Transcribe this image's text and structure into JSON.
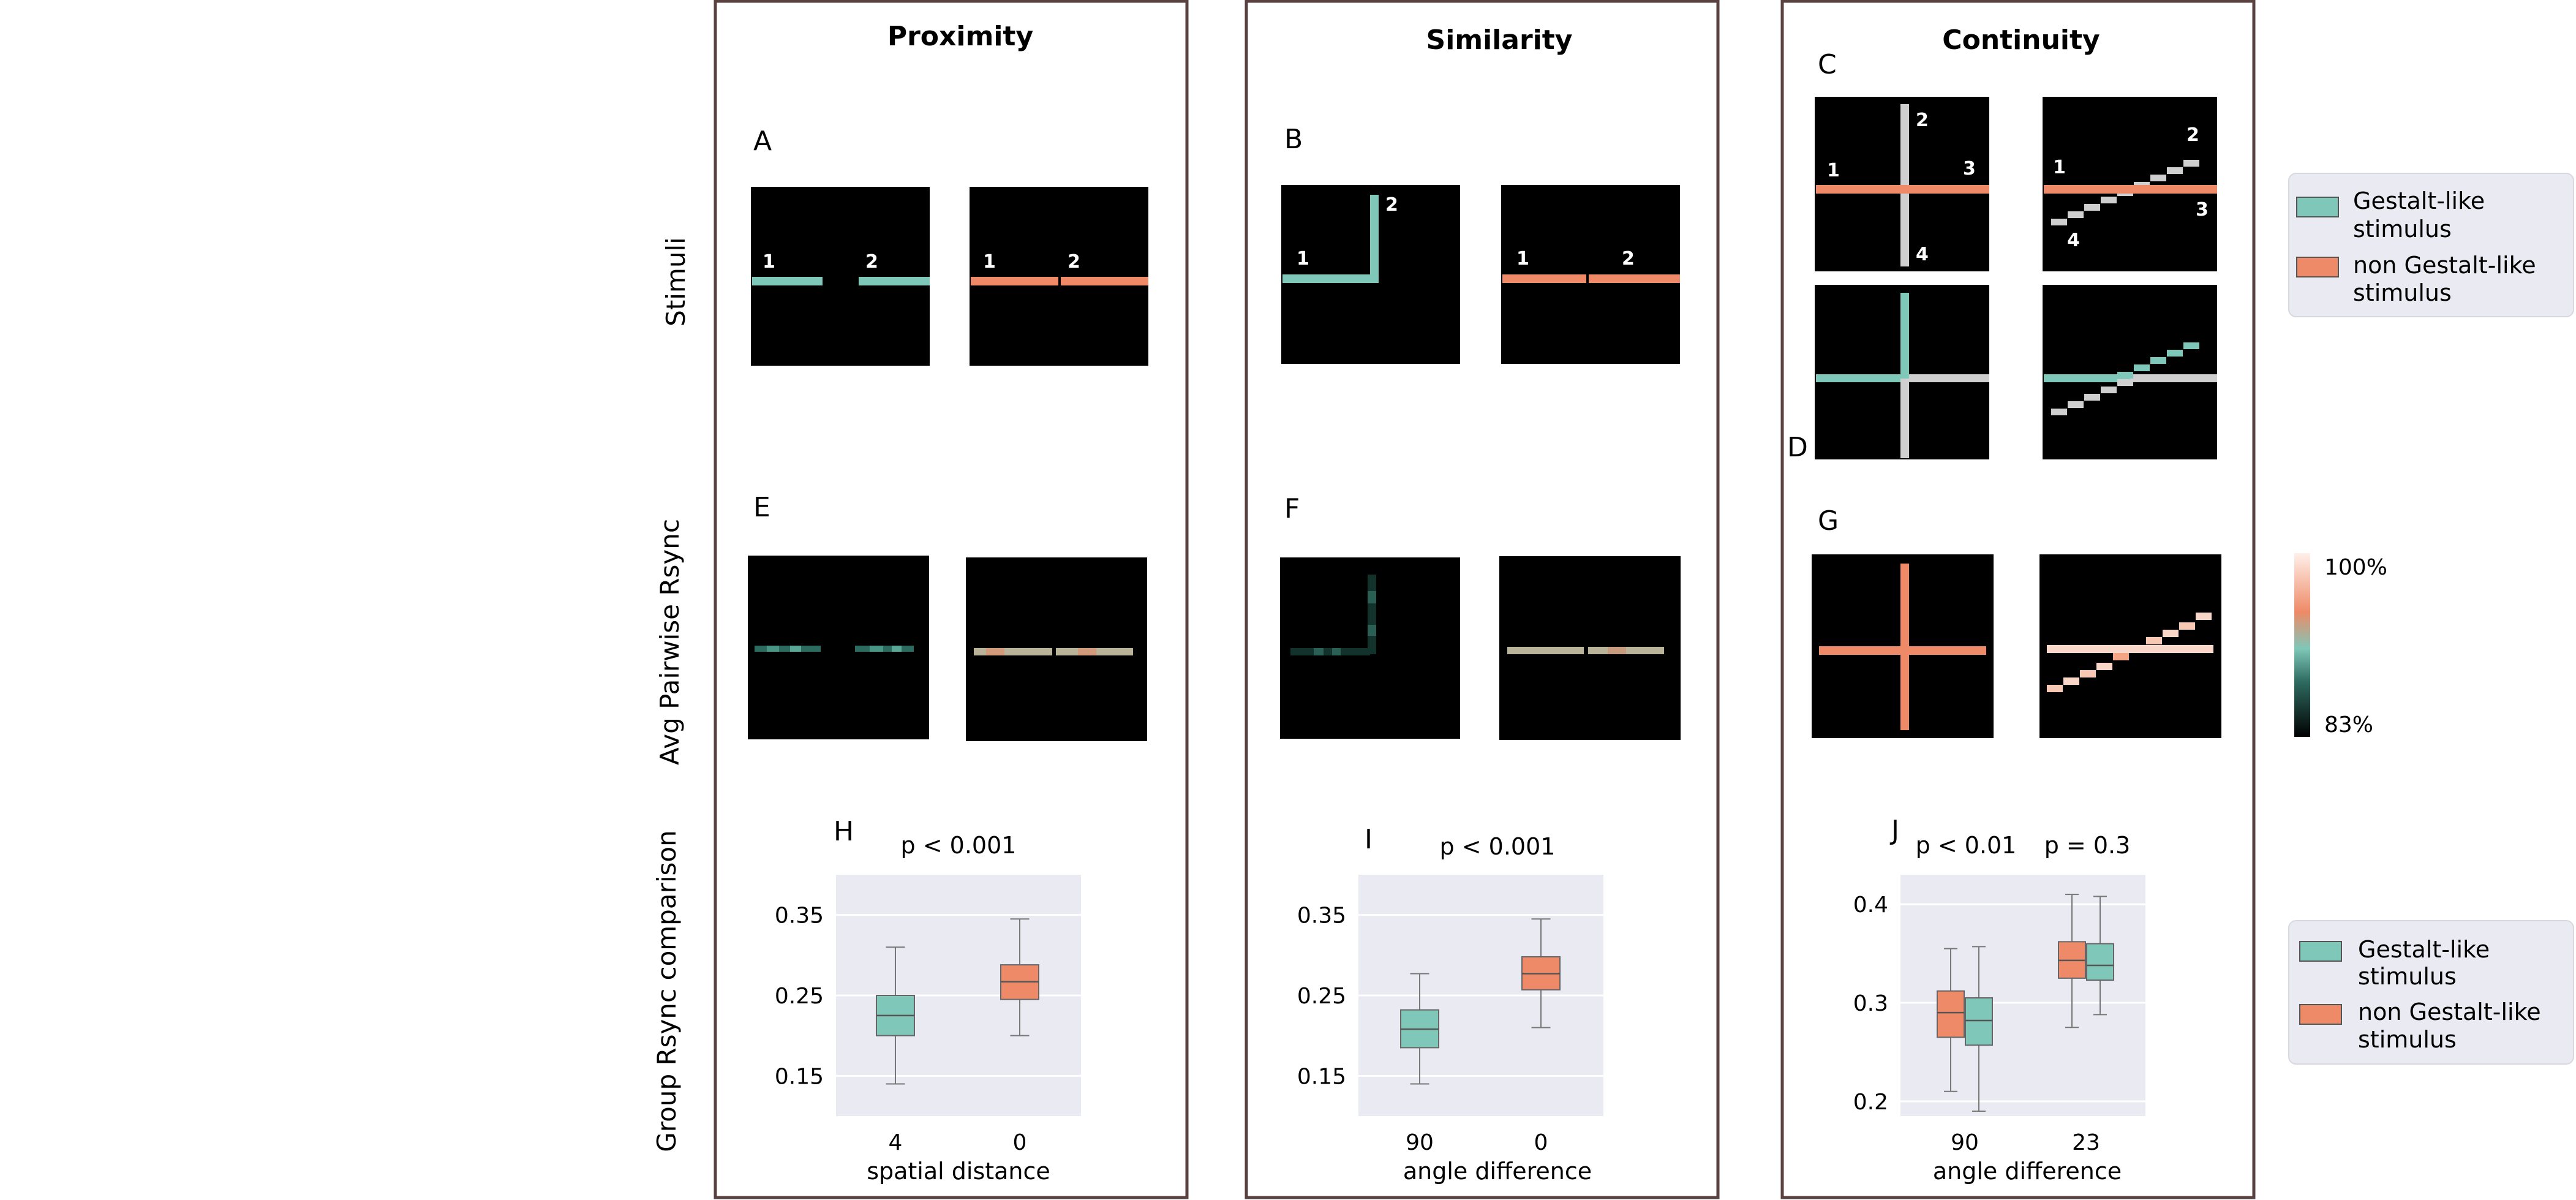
{
  "panels": [
    {
      "key": "proximity",
      "title": "Proximity"
    },
    {
      "key": "similarity",
      "title": "Similarity"
    },
    {
      "key": "continuity",
      "title": "Continuity"
    }
  ],
  "row_labels": {
    "stimuli": "Stimuli",
    "rsync": "Avg Pairwise Rsync",
    "group": "Group Rsync comparison"
  },
  "letters": {
    "A": "A",
    "B": "B",
    "C": "C",
    "D": "D",
    "E": "E",
    "F": "F",
    "G": "G",
    "H": "H",
    "I": "I",
    "J": "J"
  },
  "stimulus_numbers": {
    "n1": "1",
    "n2": "2",
    "n3": "3",
    "n4": "4"
  },
  "legend": {
    "gestalt": "Gestalt-like\nstimulus",
    "non_gestalt": "non Gestalt-like\nstimulus"
  },
  "colorbar": {
    "max_label": "100%",
    "min_label": "83%"
  },
  "colors": {
    "gestalt": "#7fc7b8",
    "non_gestalt": "#ee8a67",
    "stim_gray": "#cfcfcf",
    "plot_bg": "#eaeaf2",
    "frame": "#5a4242"
  },
  "chart_data": [
    {
      "type": "box",
      "panel": "H",
      "title": "p < 0.001",
      "xlabel": "spatial distance",
      "categories": [
        "4",
        "0"
      ],
      "ylim": [
        0.1,
        0.4
      ],
      "yticks": [
        "0.35",
        "0.25",
        "0.15"
      ],
      "boxes": [
        {
          "category": "4",
          "group": "gestalt",
          "whisker_low": 0.14,
          "q1": 0.2,
          "median": 0.225,
          "q3": 0.25,
          "whisker_high": 0.31
        },
        {
          "category": "0",
          "group": "non_gestalt",
          "whisker_low": 0.2,
          "q1": 0.245,
          "median": 0.267,
          "q3": 0.288,
          "whisker_high": 0.345
        }
      ]
    },
    {
      "type": "box",
      "panel": "I",
      "title": "p < 0.001",
      "xlabel": "angle difference",
      "categories": [
        "90",
        "0"
      ],
      "ylim": [
        0.1,
        0.4
      ],
      "yticks": [
        "0.35",
        "0.25",
        "0.15"
      ],
      "boxes": [
        {
          "category": "90",
          "group": "gestalt",
          "whisker_low": 0.14,
          "q1": 0.185,
          "median": 0.208,
          "q3": 0.232,
          "whisker_high": 0.277
        },
        {
          "category": "0",
          "group": "non_gestalt",
          "whisker_low": 0.21,
          "q1": 0.257,
          "median": 0.277,
          "q3": 0.298,
          "whisker_high": 0.345
        }
      ]
    },
    {
      "type": "box",
      "panel": "J",
      "titles": [
        "p < 0.01",
        "p = 0.3"
      ],
      "xlabel": "angle difference",
      "categories": [
        "90",
        "23"
      ],
      "ylim": [
        0.185,
        0.43
      ],
      "yticks": [
        "0.4",
        "0.3",
        "0.2"
      ],
      "boxes": [
        {
          "category": "90",
          "group": "non_gestalt",
          "whisker_low": 0.21,
          "q1": 0.265,
          "median": 0.29,
          "q3": 0.312,
          "whisker_high": 0.355
        },
        {
          "category": "90",
          "group": "gestalt",
          "whisker_low": 0.19,
          "q1": 0.257,
          "median": 0.282,
          "q3": 0.305,
          "whisker_high": 0.357
        },
        {
          "category": "23",
          "group": "non_gestalt",
          "whisker_low": 0.275,
          "q1": 0.325,
          "median": 0.343,
          "q3": 0.362,
          "whisker_high": 0.41
        },
        {
          "category": "23",
          "group": "gestalt",
          "whisker_low": 0.288,
          "q1": 0.323,
          "median": 0.338,
          "q3": 0.36,
          "whisker_high": 0.408
        }
      ]
    }
  ]
}
